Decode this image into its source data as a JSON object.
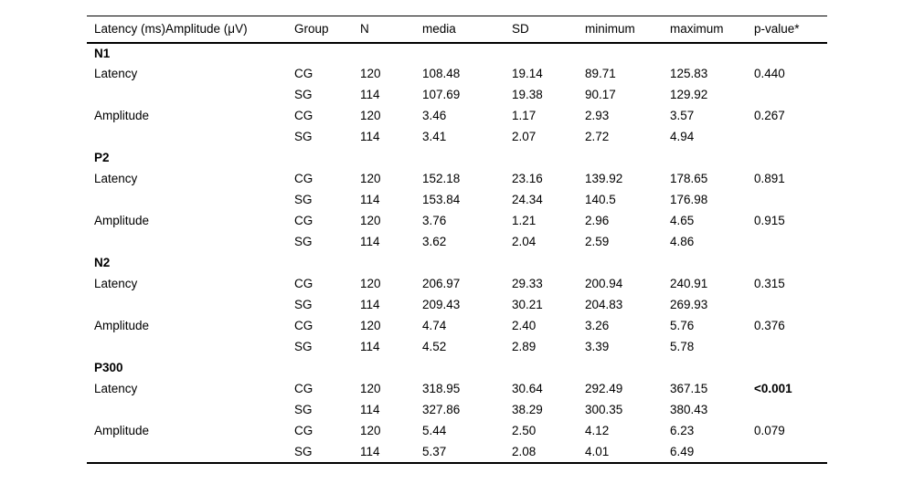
{
  "table": {
    "headers": [
      "Latency (ms)Amplitude (μV)",
      "Group",
      "N",
      "media",
      "SD",
      "minimum",
      "maximum",
      "p-value*"
    ],
    "sections": [
      {
        "name": "N1",
        "rows": [
          {
            "label": "Latency",
            "group": "CG",
            "n": "120",
            "media": "108.48",
            "sd": "19.14",
            "min": "89.71",
            "max": "125.83",
            "p": "0.440",
            "p_bold": false
          },
          {
            "label": "",
            "group": "SG",
            "n": "114",
            "media": "107.69",
            "sd": "19.38",
            "min": "90.17",
            "max": "129.92",
            "p": "",
            "p_bold": false
          },
          {
            "label": "Amplitude",
            "group": "CG",
            "n": "120",
            "media": "3.46",
            "sd": "1.17",
            "min": "2.93",
            "max": "3.57",
            "p": "0.267",
            "p_bold": false
          },
          {
            "label": "",
            "group": "SG",
            "n": "114",
            "media": "3.41",
            "sd": "2.07",
            "min": "2.72",
            "max": "4.94",
            "p": "",
            "p_bold": false
          }
        ]
      },
      {
        "name": "P2",
        "rows": [
          {
            "label": "Latency",
            "group": "CG",
            "n": "120",
            "media": "152.18",
            "sd": "23.16",
            "min": "139.92",
            "max": "178.65",
            "p": "0.891",
            "p_bold": false
          },
          {
            "label": "",
            "group": "SG",
            "n": "114",
            "media": "153.84",
            "sd": "24.34",
            "min": "140.5",
            "max": "176.98",
            "p": "",
            "p_bold": false
          },
          {
            "label": "Amplitude",
            "group": "CG",
            "n": "120",
            "media": "3.76",
            "sd": "1.21",
            "min": "2.96",
            "max": "4.65",
            "p": "0.915",
            "p_bold": false
          },
          {
            "label": "",
            "group": "SG",
            "n": "114",
            "media": "3.62",
            "sd": "2.04",
            "min": "2.59",
            "max": "4.86",
            "p": "",
            "p_bold": false
          }
        ]
      },
      {
        "name": "N2",
        "rows": [
          {
            "label": "Latency",
            "group": "CG",
            "n": "120",
            "media": "206.97",
            "sd": "29.33",
            "min": "200.94",
            "max": "240.91",
            "p": "0.315",
            "p_bold": false
          },
          {
            "label": "",
            "group": "SG",
            "n": "114",
            "media": "209.43",
            "sd": "30.21",
            "min": "204.83",
            "max": "269.93",
            "p": "",
            "p_bold": false
          },
          {
            "label": "Amplitude",
            "group": "CG",
            "n": "120",
            "media": "4.74",
            "sd": "2.40",
            "min": "3.26",
            "max": "5.76",
            "p": "0.376",
            "p_bold": false
          },
          {
            "label": "",
            "group": "SG",
            "n": "114",
            "media": "4.52",
            "sd": "2.89",
            "min": "3.39",
            "max": "5.78",
            "p": "",
            "p_bold": false
          }
        ]
      },
      {
        "name": "P300",
        "rows": [
          {
            "label": "Latency",
            "group": "CG",
            "n": "120",
            "media": "318.95",
            "sd": "30.64",
            "min": "292.49",
            "max": "367.15",
            "p": "<0.001",
            "p_bold": true
          },
          {
            "label": "",
            "group": "SG",
            "n": "114",
            "media": "327.86",
            "sd": "38.29",
            "min": "300.35",
            "max": "380.43",
            "p": "",
            "p_bold": false
          },
          {
            "label": "Amplitude",
            "group": "CG",
            "n": "120",
            "media": "5.44",
            "sd": "2.50",
            "min": "4.12",
            "max": "6.23",
            "p": "0.079",
            "p_bold": false
          },
          {
            "label": "",
            "group": "SG",
            "n": "114",
            "media": "5.37",
            "sd": "2.08",
            "min": "4.01",
            "max": "6.49",
            "p": "",
            "p_bold": false
          }
        ]
      }
    ]
  }
}
